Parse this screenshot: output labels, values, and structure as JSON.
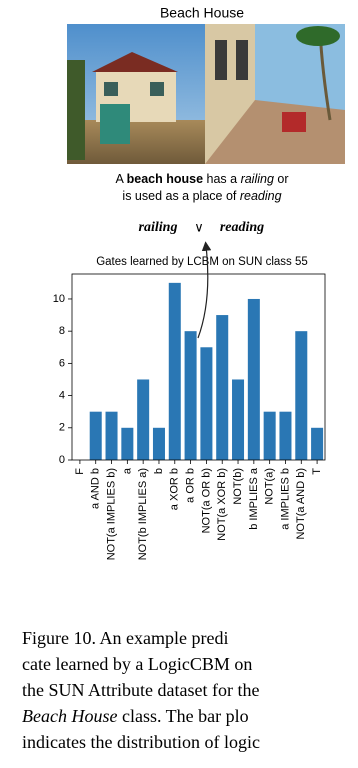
{
  "figure": {
    "image_title": "Beach House",
    "description": [
      "A ",
      "beach house",
      " has a ",
      "railing",
      " or",
      "is used as a place of ",
      "reading"
    ],
    "formula": [
      "railing",
      "∨",
      "reading"
    ]
  },
  "chart_data": {
    "type": "bar",
    "title": "Gates learned by LCBM on SUN class 55",
    "categories": [
      "F",
      "a AND b",
      "NOT(a IMPLIES b)",
      "a",
      "NOT(b IMPLIES a)",
      "b",
      "a XOR b",
      "a OR b",
      "NOT(a OR b)",
      "NOT(a XOR b)",
      "NOT(b)",
      "b IMPLIES a",
      "NOT(a)",
      "a IMPLIES b",
      "NOT(a AND b)",
      "T"
    ],
    "values": [
      0,
      3,
      3,
      2,
      5,
      2,
      11,
      8,
      7,
      9,
      5,
      10,
      3,
      3,
      8,
      2
    ],
    "color": "#2a77b4",
    "ylim": [
      0,
      11.55
    ],
    "yticks": [
      0,
      2,
      4,
      6,
      8,
      10
    ]
  },
  "caption": {
    "lines": [
      [
        "Figure 10.   An example predi"
      ],
      [
        "cate learned by a LogicCBM on"
      ],
      [
        "the SUN Attribute dataset for the"
      ],
      [
        "Beach House",
        " class.  The bar plo"
      ],
      [
        "indicates the distribution of logic"
      ]
    ]
  }
}
